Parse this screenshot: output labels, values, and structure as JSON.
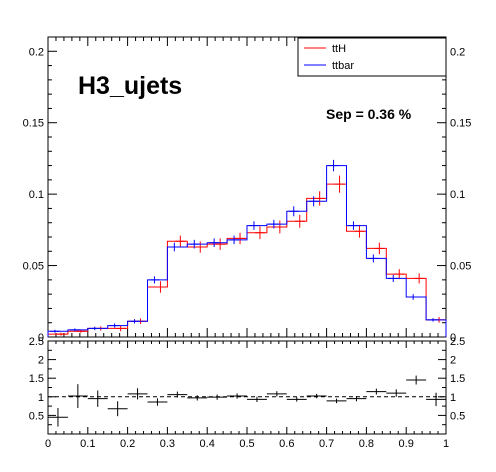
{
  "chart_data": [
    {
      "type": "line",
      "subtype": "histogram-step-with-errorbars",
      "title": "H3_ujets",
      "annotation": "Sep = 0.36 %",
      "xlim": [
        0,
        1
      ],
      "ylim": [
        0,
        0.21
      ],
      "bins": 20,
      "xlabel": "",
      "ylabel": "",
      "yticks": [
        "0",
        "0.05",
        "0.1",
        "0.15",
        "0.2"
      ],
      "mirror_axis_right": true,
      "legend_position": "top-right",
      "legend": [
        {
          "name": "ttH",
          "color": "#ff0000"
        },
        {
          "name": "ttbar",
          "color": "#0000ff"
        }
      ],
      "series": [
        {
          "name": "ttH",
          "color": "#ff0000",
          "values": [
            0.002,
            0.004,
            0.006,
            0.006,
            0.011,
            0.035,
            0.067,
            0.063,
            0.065,
            0.069,
            0.073,
            0.077,
            0.081,
            0.097,
            0.107,
            0.074,
            0.062,
            0.044,
            0.041,
            0.012
          ],
          "errors": [
            0.001,
            0.001,
            0.0015,
            0.002,
            0.002,
            0.004,
            0.004,
            0.004,
            0.004,
            0.004,
            0.0045,
            0.0045,
            0.0045,
            0.005,
            0.006,
            0.0045,
            0.004,
            0.0035,
            0.0035,
            0.002
          ]
        },
        {
          "name": "ttbar",
          "color": "#0000ff",
          "values": [
            0.004,
            0.005,
            0.006,
            0.008,
            0.011,
            0.04,
            0.063,
            0.065,
            0.066,
            0.068,
            0.078,
            0.079,
            0.088,
            0.095,
            0.12,
            0.078,
            0.055,
            0.041,
            0.028,
            0.012
          ],
          "errors": [
            0.001,
            0.001,
            0.0012,
            0.0015,
            0.0015,
            0.0025,
            0.003,
            0.003,
            0.003,
            0.003,
            0.003,
            0.003,
            0.0035,
            0.0035,
            0.004,
            0.003,
            0.0028,
            0.0025,
            0.002,
            0.0012
          ]
        }
      ]
    },
    {
      "type": "scatter",
      "subtype": "ratio-with-errorbars",
      "xlim": [
        0,
        1
      ],
      "ylim": [
        0,
        2.5
      ],
      "xticks": [
        "0",
        "0.1",
        "0.2",
        "0.3",
        "0.4",
        "0.5",
        "0.6",
        "0.7",
        "0.8",
        "0.9",
        "1"
      ],
      "yticks": [
        "0.5",
        "1",
        "1.5",
        "2",
        "2.5"
      ],
      "reference_line": 1,
      "mirror_axis_right": true,
      "values": [
        0.45,
        1.02,
        0.95,
        0.68,
        1.08,
        0.86,
        1.06,
        0.97,
        0.99,
        1.02,
        0.93,
        1.08,
        0.93,
        1.02,
        0.89,
        0.95,
        1.14,
        1.1,
        1.45,
        0.93
      ],
      "errors": [
        0.25,
        0.32,
        0.22,
        0.2,
        0.15,
        0.1,
        0.08,
        0.07,
        0.07,
        0.07,
        0.07,
        0.07,
        0.06,
        0.06,
        0.06,
        0.07,
        0.08,
        0.1,
        0.12,
        0.18
      ]
    }
  ]
}
